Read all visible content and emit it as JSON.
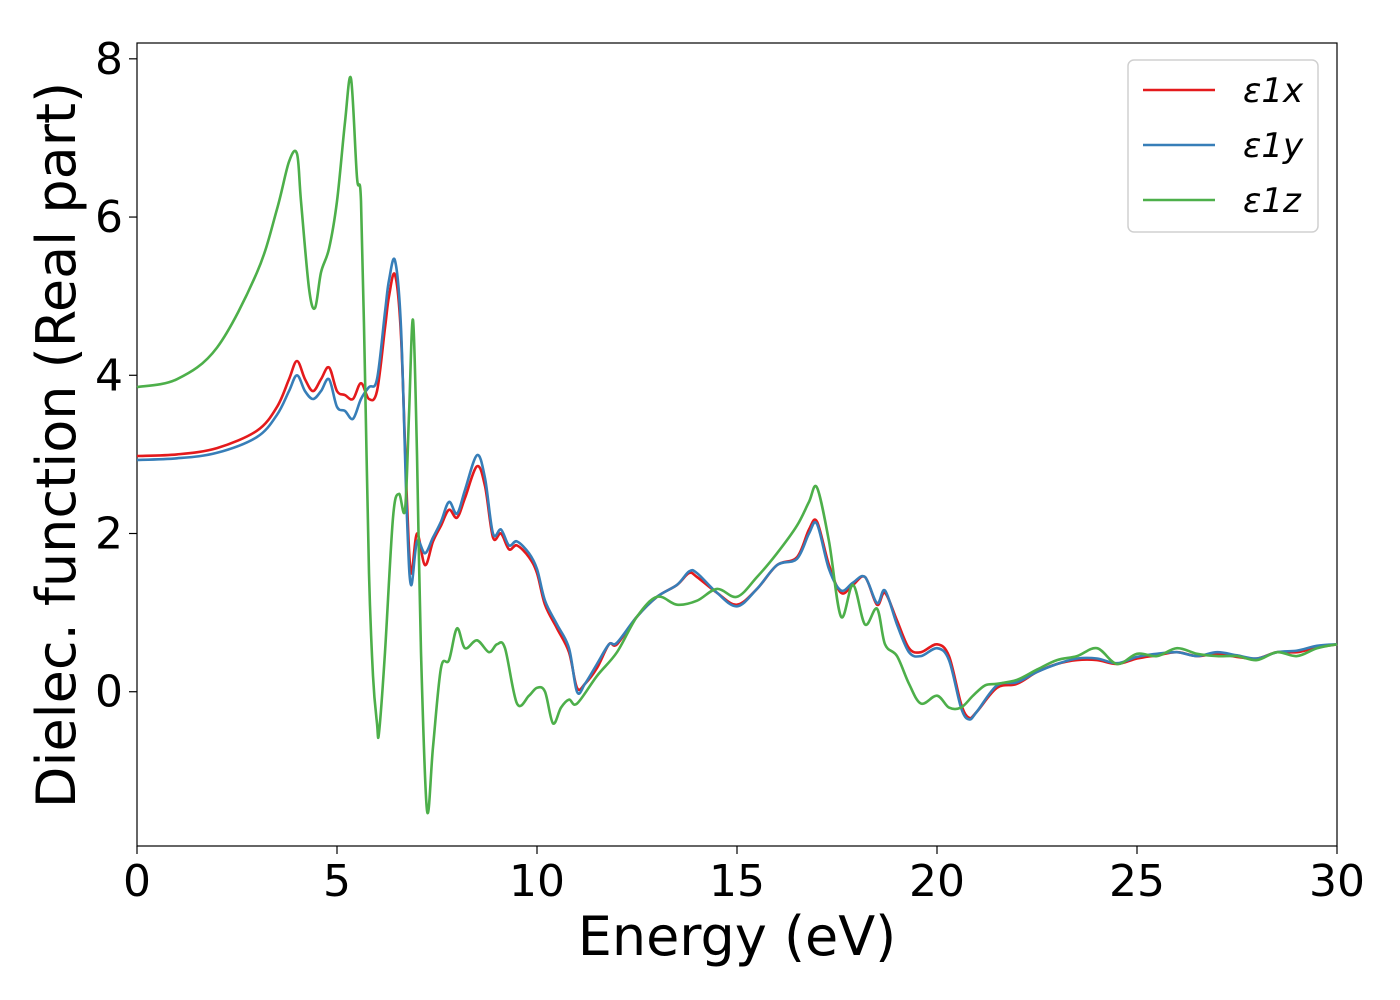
{
  "chart_data": {
    "type": "line",
    "title": "",
    "xlabel": "Energy (eV)",
    "ylabel": "Dielec. function (Real part)",
    "xlim": [
      0,
      30
    ],
    "ylim": [
      -1.95,
      8.2
    ],
    "xticks": [
      0,
      5,
      10,
      15,
      20,
      25,
      30
    ],
    "yticks": [
      0,
      2,
      4,
      6,
      8
    ],
    "grid": false,
    "legend_position": "top-right",
    "series": [
      {
        "name": "ε1x",
        "color": "#e41a1c",
        "x": [
          0,
          1,
          2,
          3,
          3.5,
          3.8,
          4.0,
          4.2,
          4.4,
          4.6,
          4.8,
          5.0,
          5.2,
          5.4,
          5.6,
          5.8,
          6.0,
          6.2,
          6.3,
          6.45,
          6.6,
          6.75,
          6.85,
          7.0,
          7.2,
          7.4,
          7.6,
          7.8,
          8.0,
          8.2,
          8.5,
          8.7,
          8.9,
          9.1,
          9.3,
          9.5,
          9.8,
          10.0,
          10.2,
          10.5,
          10.8,
          11.0,
          11.2,
          11.5,
          11.8,
          12.0,
          12.5,
          13.0,
          13.5,
          13.8,
          14.0,
          14.5,
          15.0,
          15.5,
          16.0,
          16.5,
          16.8,
          17.0,
          17.3,
          17.6,
          17.9,
          18.2,
          18.5,
          18.7,
          19.0,
          19.3,
          19.6,
          20.0,
          20.3,
          20.6,
          20.8,
          21.0,
          21.5,
          22.0,
          22.5,
          23.0,
          23.5,
          24.0,
          24.5,
          25.0,
          25.5,
          26.0,
          26.5,
          27.0,
          27.5,
          28.0,
          28.5,
          29.0,
          29.5,
          30.0
        ],
        "values": [
          2.98,
          3.0,
          3.08,
          3.3,
          3.6,
          3.95,
          4.18,
          3.95,
          3.8,
          3.95,
          4.1,
          3.8,
          3.75,
          3.7,
          3.9,
          3.7,
          3.8,
          4.6,
          5.0,
          5.27,
          4.5,
          2.4,
          1.5,
          2.0,
          1.6,
          1.9,
          2.1,
          2.3,
          2.2,
          2.45,
          2.85,
          2.6,
          1.95,
          2.0,
          1.8,
          1.85,
          1.7,
          1.5,
          1.1,
          0.8,
          0.5,
          0.05,
          0.1,
          0.3,
          0.6,
          0.6,
          0.95,
          1.2,
          1.35,
          1.5,
          1.45,
          1.25,
          1.1,
          1.3,
          1.6,
          1.7,
          2.05,
          2.15,
          1.6,
          1.25,
          1.35,
          1.45,
          1.1,
          1.25,
          0.9,
          0.55,
          0.5,
          0.6,
          0.45,
          -0.15,
          -0.33,
          -0.25,
          0.05,
          0.1,
          0.25,
          0.35,
          0.4,
          0.4,
          0.35,
          0.42,
          0.46,
          0.5,
          0.45,
          0.48,
          0.44,
          0.42,
          0.5,
          0.5,
          0.56,
          0.6
        ]
      },
      {
        "name": "ε1y",
        "color": "#377eb8",
        "x": [
          0,
          1,
          2,
          3,
          3.5,
          3.8,
          4.0,
          4.2,
          4.4,
          4.6,
          4.8,
          5.0,
          5.2,
          5.4,
          5.6,
          5.8,
          6.0,
          6.2,
          6.3,
          6.45,
          6.6,
          6.75,
          6.85,
          7.0,
          7.2,
          7.4,
          7.6,
          7.8,
          8.0,
          8.2,
          8.5,
          8.7,
          8.9,
          9.1,
          9.3,
          9.5,
          9.8,
          10.0,
          10.2,
          10.5,
          10.8,
          11.0,
          11.2,
          11.5,
          11.8,
          12.0,
          12.5,
          13.0,
          13.5,
          13.8,
          14.0,
          14.5,
          15.0,
          15.5,
          16.0,
          16.5,
          16.8,
          17.0,
          17.3,
          17.6,
          17.9,
          18.2,
          18.5,
          18.7,
          19.0,
          19.3,
          19.6,
          20.0,
          20.3,
          20.6,
          20.8,
          21.0,
          21.5,
          22.0,
          22.5,
          23.0,
          23.5,
          24.0,
          24.5,
          25.0,
          25.5,
          26.0,
          26.5,
          27.0,
          27.5,
          28.0,
          28.5,
          29.0,
          29.5,
          30.0
        ],
        "values": [
          2.93,
          2.95,
          3.02,
          3.22,
          3.5,
          3.8,
          4.0,
          3.8,
          3.7,
          3.8,
          3.95,
          3.6,
          3.55,
          3.45,
          3.7,
          3.85,
          3.95,
          4.8,
          5.2,
          5.45,
          4.6,
          2.2,
          1.35,
          1.9,
          1.75,
          1.95,
          2.15,
          2.4,
          2.25,
          2.55,
          2.99,
          2.7,
          2.0,
          2.05,
          1.85,
          1.9,
          1.75,
          1.55,
          1.15,
          0.85,
          0.55,
          0.0,
          0.1,
          0.35,
          0.6,
          0.62,
          0.95,
          1.2,
          1.35,
          1.52,
          1.5,
          1.25,
          1.08,
          1.3,
          1.6,
          1.68,
          2.0,
          2.12,
          1.55,
          1.28,
          1.38,
          1.45,
          1.12,
          1.28,
          0.85,
          0.5,
          0.45,
          0.55,
          0.4,
          -0.2,
          -0.35,
          -0.25,
          0.08,
          0.12,
          0.25,
          0.35,
          0.42,
          0.42,
          0.36,
          0.44,
          0.48,
          0.5,
          0.45,
          0.5,
          0.46,
          0.42,
          0.5,
          0.52,
          0.58,
          0.6
        ]
      },
      {
        "name": "ε1z",
        "color": "#4daf4a",
        "x": [
          0,
          1,
          2,
          3,
          3.5,
          3.8,
          4.0,
          4.1,
          4.3,
          4.45,
          4.6,
          4.8,
          5.0,
          5.2,
          5.35,
          5.5,
          5.6,
          5.7,
          5.8,
          5.9,
          6.0,
          6.05,
          6.2,
          6.4,
          6.55,
          6.7,
          6.8,
          6.9,
          7.0,
          7.1,
          7.25,
          7.4,
          7.6,
          7.8,
          8.0,
          8.2,
          8.5,
          8.8,
          9.0,
          9.2,
          9.5,
          9.8,
          10.0,
          10.2,
          10.4,
          10.6,
          10.8,
          11.0,
          11.5,
          12.0,
          12.5,
          13.0,
          13.5,
          14.0,
          14.5,
          15.0,
          15.5,
          16.0,
          16.5,
          16.8,
          17.0,
          17.3,
          17.6,
          17.9,
          18.2,
          18.5,
          18.7,
          19.0,
          19.3,
          19.6,
          20.0,
          20.3,
          20.6,
          20.9,
          21.2,
          21.5,
          22.0,
          22.5,
          23.0,
          23.5,
          24.0,
          24.5,
          25.0,
          25.5,
          26.0,
          26.5,
          27.0,
          27.5,
          28.0,
          28.5,
          29.0,
          29.5,
          30.0
        ],
        "values": [
          3.85,
          3.95,
          4.35,
          5.3,
          6.1,
          6.7,
          6.8,
          6.2,
          5.1,
          4.85,
          5.3,
          5.6,
          6.2,
          7.2,
          7.75,
          6.5,
          6.2,
          4.0,
          1.5,
          0.2,
          -0.4,
          -0.52,
          0.5,
          2.2,
          2.5,
          2.3,
          3.5,
          4.7,
          3.0,
          0.5,
          -1.5,
          -0.7,
          0.3,
          0.4,
          0.8,
          0.55,
          0.65,
          0.5,
          0.6,
          0.55,
          -0.15,
          -0.05,
          0.05,
          0.0,
          -0.4,
          -0.2,
          -0.1,
          -0.15,
          0.2,
          0.5,
          0.95,
          1.2,
          1.1,
          1.15,
          1.3,
          1.2,
          1.45,
          1.75,
          2.1,
          2.4,
          2.58,
          1.9,
          0.95,
          1.35,
          0.85,
          1.05,
          0.6,
          0.45,
          0.1,
          -0.15,
          -0.05,
          -0.2,
          -0.2,
          -0.05,
          0.08,
          0.1,
          0.15,
          0.28,
          0.4,
          0.45,
          0.55,
          0.35,
          0.48,
          0.45,
          0.55,
          0.48,
          0.45,
          0.45,
          0.4,
          0.5,
          0.45,
          0.55,
          0.6
        ]
      }
    ]
  }
}
